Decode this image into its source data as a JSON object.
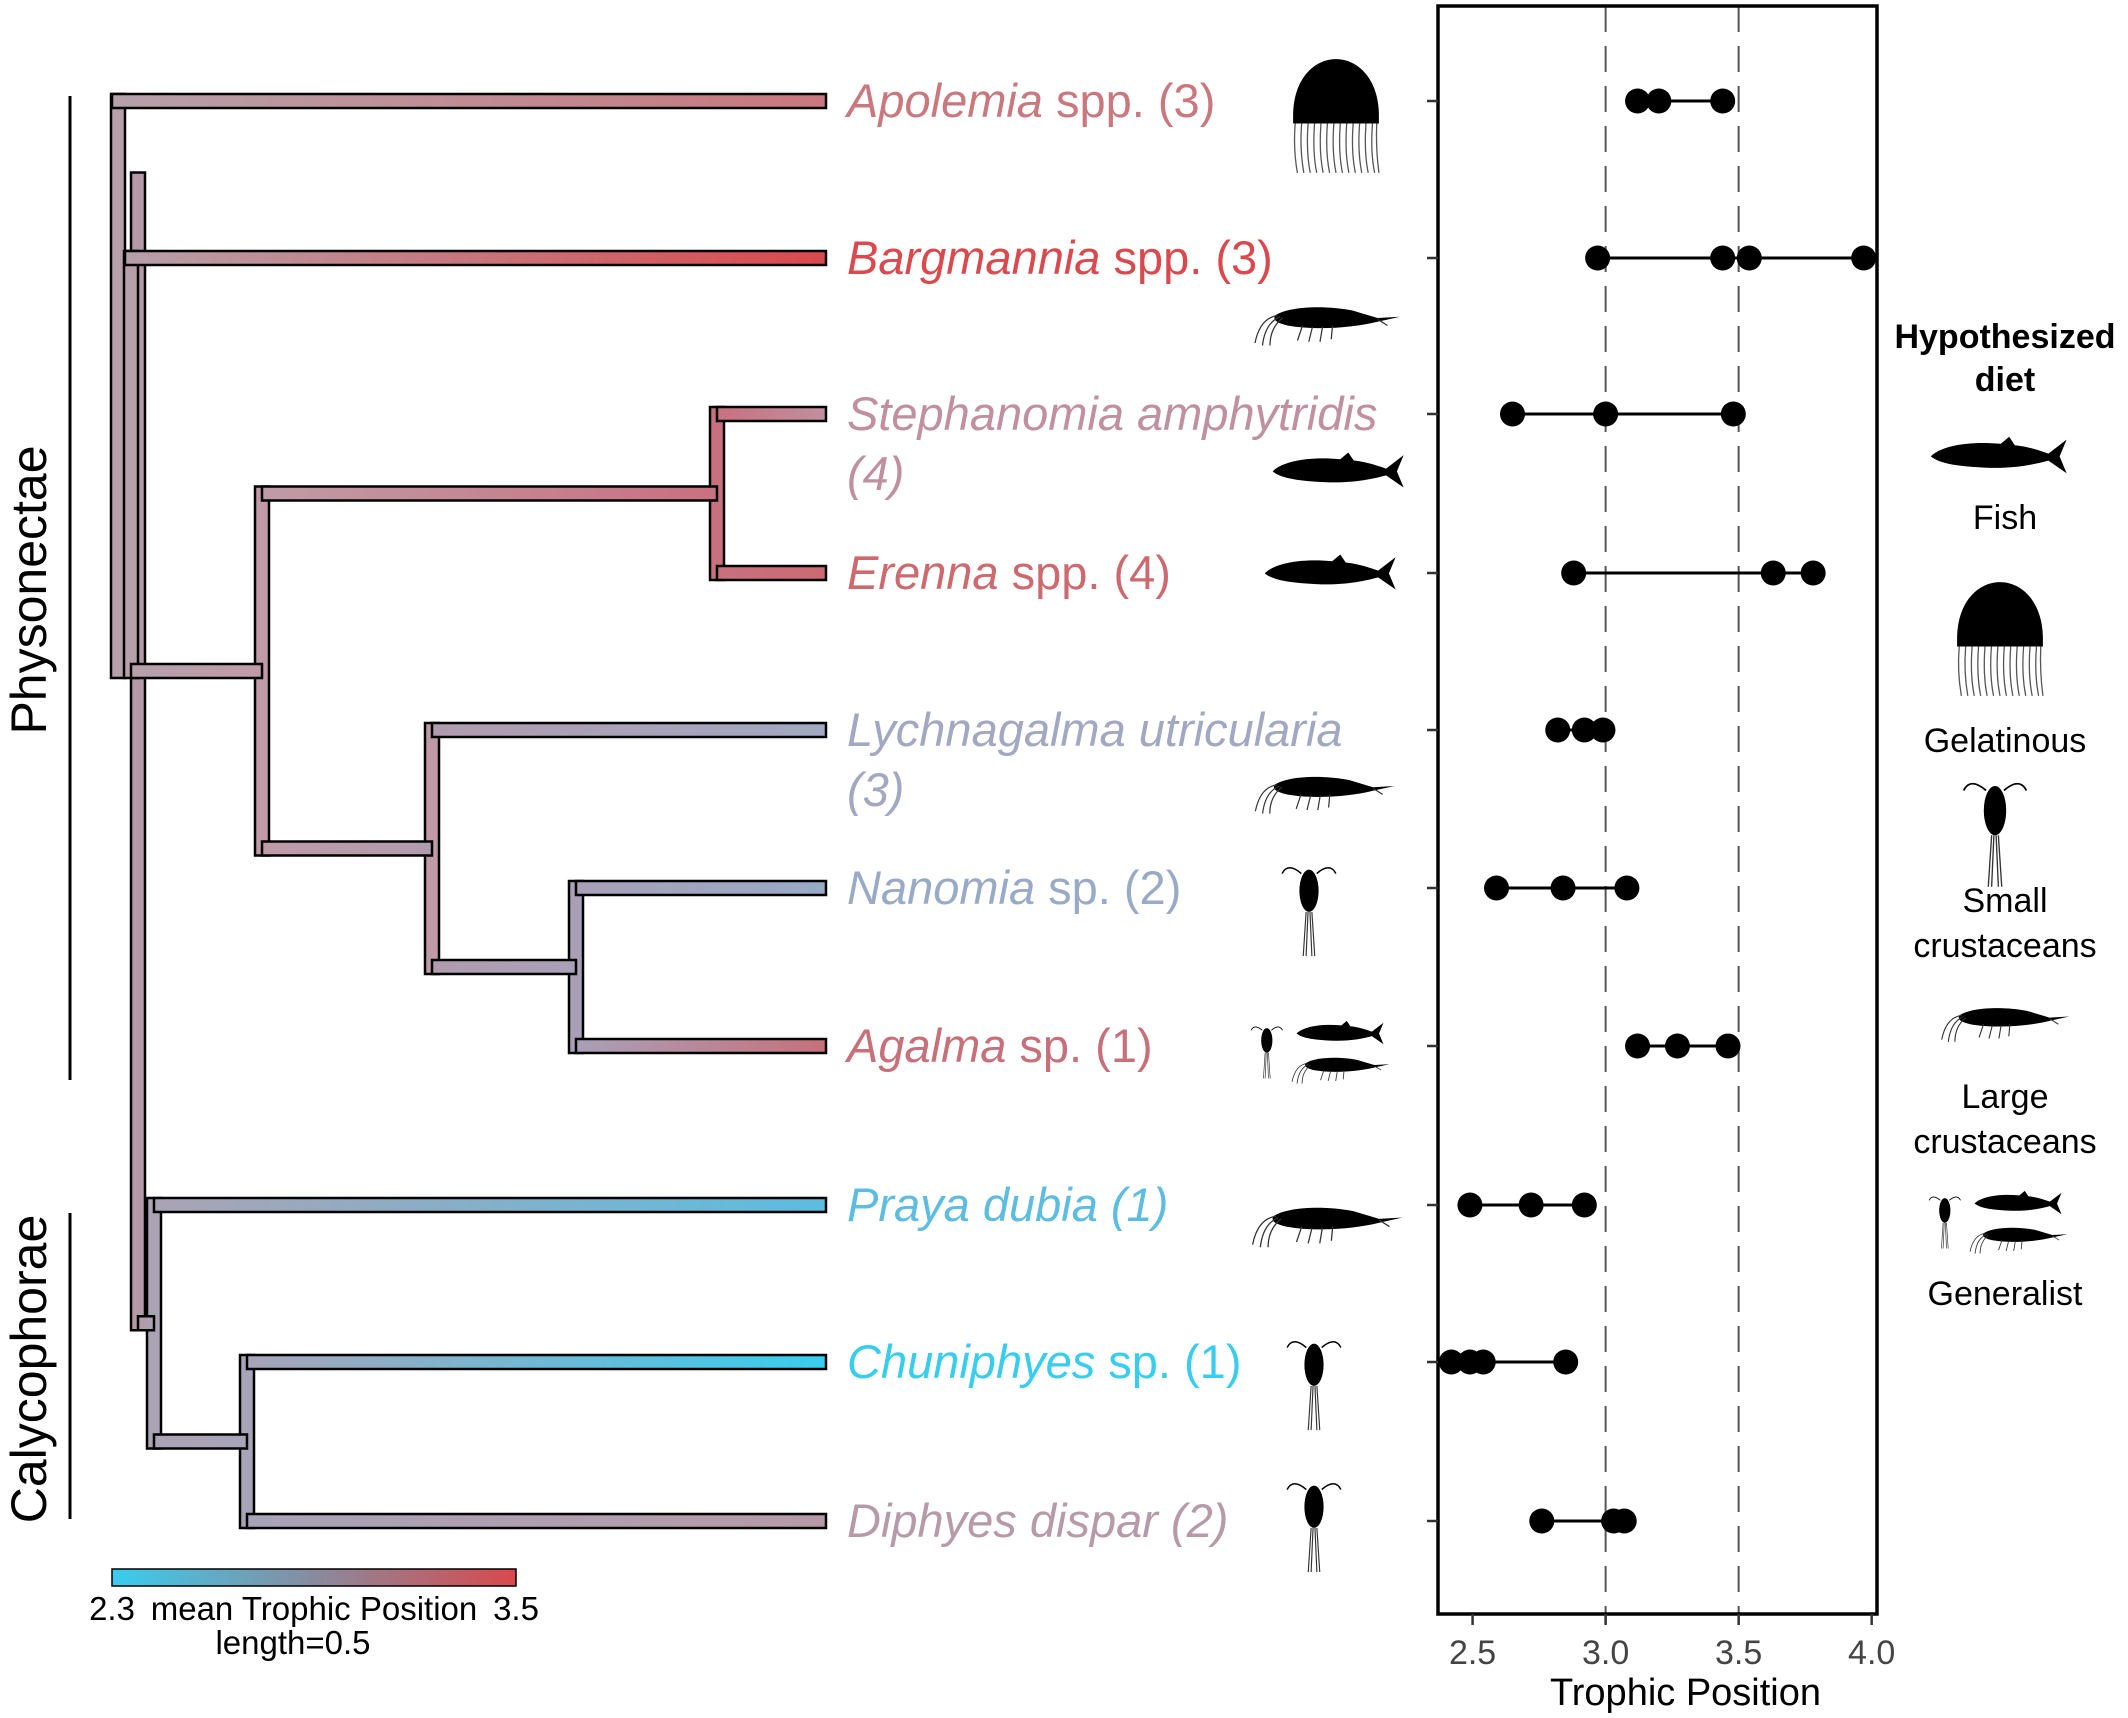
{
  "clades": {
    "physonectae": "Physonectae",
    "calycophorae": "Calycophorae"
  },
  "taxa": [
    {
      "id": "apolemia",
      "genus": "Apolemia",
      "rest": " spp. (3)",
      "genus_italic": true,
      "rest_italic": false,
      "count_italic": true,
      "trophic": [
        3.12,
        3.2,
        3.44
      ],
      "color": "#c9787e",
      "diet": "gelatinous"
    },
    {
      "id": "bargmannia",
      "genus": "Bargmannia",
      "rest": " spp. (3)",
      "genus_italic": true,
      "rest_italic": false,
      "count_italic": true,
      "trophic": [
        2.97,
        3.44,
        3.54,
        3.97
      ],
      "color": "#d9494d",
      "diet": "large-crustaceans"
    },
    {
      "id": "stephanomia",
      "genus": "Stephanomia amphytridis",
      "rest": "(4)",
      "genus_italic": true,
      "rest_italic": true,
      "count_italic": true,
      "trophic": [
        2.65,
        3.0,
        3.48
      ],
      "color": "#c090a0",
      "diet": "fish"
    },
    {
      "id": "erenna",
      "genus": "Erenna",
      "rest": " spp. (4)",
      "genus_italic": true,
      "rest_italic": false,
      "count_italic": true,
      "trophic": [
        2.88,
        3.63,
        3.78
      ],
      "color": "#cd6a70",
      "diet": "fish"
    },
    {
      "id": "lychnagalma",
      "genus": "Lychnagalma utricularia",
      "rest": "(3)",
      "genus_italic": true,
      "rest_italic": true,
      "count_italic": true,
      "trophic": [
        2.82,
        2.92,
        2.99
      ],
      "color": "#a2a8c2",
      "diet": "large-crustaceans"
    },
    {
      "id": "nanomia",
      "genus": "Nanomia",
      "rest": " sp. (2)",
      "genus_italic": true,
      "rest_italic": false,
      "count_italic": true,
      "trophic": [
        2.59,
        2.84,
        3.08
      ],
      "color": "#98aac6",
      "diet": "small-crustaceans"
    },
    {
      "id": "agalma",
      "genus": "Agalma",
      "rest": " sp. (1)",
      "genus_italic": true,
      "rest_italic": false,
      "count_italic": true,
      "trophic": [
        3.12,
        3.27,
        3.46
      ],
      "color": "#c7707a",
      "diet": "generalist"
    },
    {
      "id": "praya",
      "genus": "Praya dubia",
      "rest": " (1)",
      "genus_italic": true,
      "rest_italic": true,
      "count_italic": true,
      "trophic": [
        2.49,
        2.72,
        2.92
      ],
      "color": "#5cbde0",
      "diet": "large-crustaceans"
    },
    {
      "id": "chuniphyes",
      "genus": "Chuniphyes",
      "rest": " sp. (1)",
      "genus_italic": true,
      "rest_italic": false,
      "count_italic": true,
      "trophic": [
        2.42,
        2.49,
        2.54,
        2.85
      ],
      "color": "#38cdef",
      "diet": "small-crustaceans"
    },
    {
      "id": "diphyes",
      "genus": "Diphyes dispar",
      "rest": " (2)",
      "genus_italic": true,
      "rest_italic": true,
      "count_italic": true,
      "trophic": [
        2.76,
        3.03,
        3.07
      ],
      "color": "#b79aa8",
      "diet": "small-crustaceans"
    }
  ],
  "tree_colors": {
    "root": "#b49aa6",
    "deep": "#b6a0aa",
    "phyclade": "#c09ba7",
    "cal": "#aaa3b4"
  },
  "color_bar": {
    "min_label": "2.3",
    "max_label": "3.5",
    "title": "mean Trophic Position",
    "length_label": "length=0.5",
    "low_color": "#38cdef",
    "high_color": "#d9494d"
  },
  "chart_data": {
    "type": "scatter",
    "xlabel": "Trophic Position",
    "xlim": [
      2.37,
      4.02
    ],
    "x_ticks": [
      "2.5",
      "3.0",
      "3.5",
      "4.0"
    ],
    "x_tick_values": [
      2.5,
      3.0,
      3.5,
      4.0
    ],
    "reference_lines": [
      3.0,
      3.5
    ],
    "grid": false,
    "series": [
      {
        "category": "Apolemia spp.",
        "x": [
          3.12,
          3.2,
          3.44
        ]
      },
      {
        "category": "Bargmannia spp.",
        "x": [
          2.97,
          3.44,
          3.54,
          3.97
        ]
      },
      {
        "category": "Stephanomia amphytridis",
        "x": [
          2.65,
          3.0,
          3.48
        ]
      },
      {
        "category": "Erenna spp.",
        "x": [
          2.88,
          3.63,
          3.78
        ]
      },
      {
        "category": "Lychnagalma utricularia",
        "x": [
          2.82,
          2.92,
          2.99
        ]
      },
      {
        "category": "Nanomia sp.",
        "x": [
          2.59,
          2.84,
          3.08
        ]
      },
      {
        "category": "Agalma sp.",
        "x": [
          3.12,
          3.27,
          3.46
        ]
      },
      {
        "category": "Praya dubia",
        "x": [
          2.49,
          2.72,
          2.92
        ]
      },
      {
        "category": "Chuniphyes sp.",
        "x": [
          2.42,
          2.49,
          2.54,
          2.85
        ]
      },
      {
        "category": "Diphyes dispar",
        "x": [
          2.76,
          3.03,
          3.07
        ]
      }
    ]
  },
  "diet_legend": {
    "title_line1": "Hypothesized",
    "title_line2": "diet",
    "items": [
      {
        "icon": "fish-icon",
        "lines": [
          "Fish"
        ]
      },
      {
        "icon": "jellyfish-icon",
        "lines": [
          "Gelatinous"
        ]
      },
      {
        "icon": "copepod-icon",
        "lines": [
          "Small",
          "crustaceans"
        ]
      },
      {
        "icon": "shrimp-icon",
        "lines": [
          "Large",
          "crustaceans"
        ]
      },
      {
        "icon": "generalist-icon",
        "lines": [
          "Generalist"
        ]
      }
    ]
  }
}
